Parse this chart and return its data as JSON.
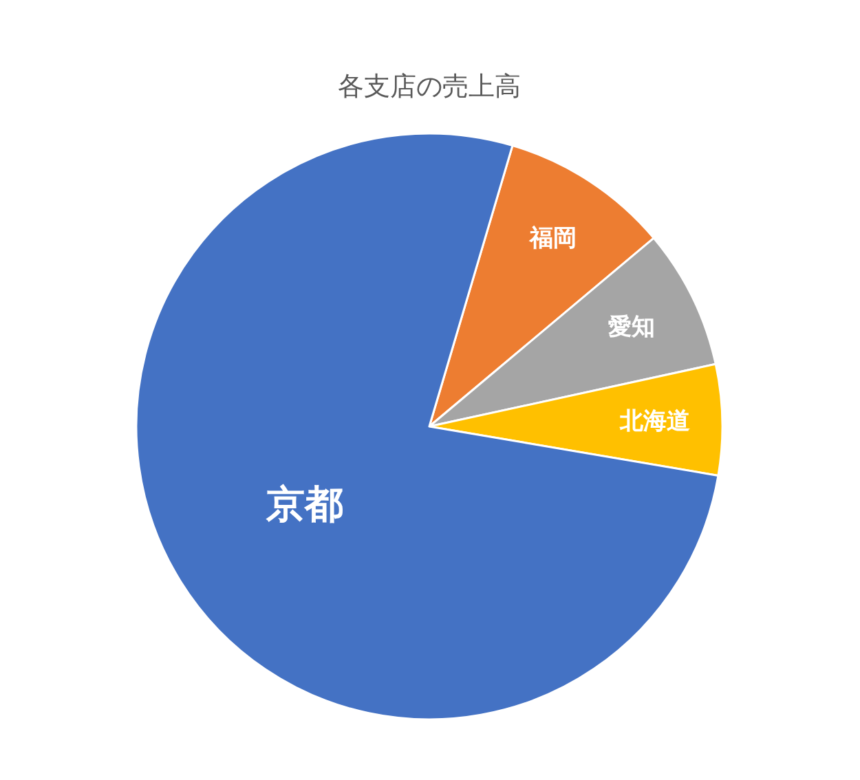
{
  "chart_data": {
    "type": "pie",
    "title": "各支店の売上高",
    "categories": [
      "福岡",
      "愛知",
      "北海道",
      "京都"
    ],
    "values": [
      9.3,
      7.7,
      6.1,
      76.9
    ],
    "colors": [
      "#ed7d31",
      "#a5a5a5",
      "#ffc000",
      "#4472c4"
    ]
  }
}
